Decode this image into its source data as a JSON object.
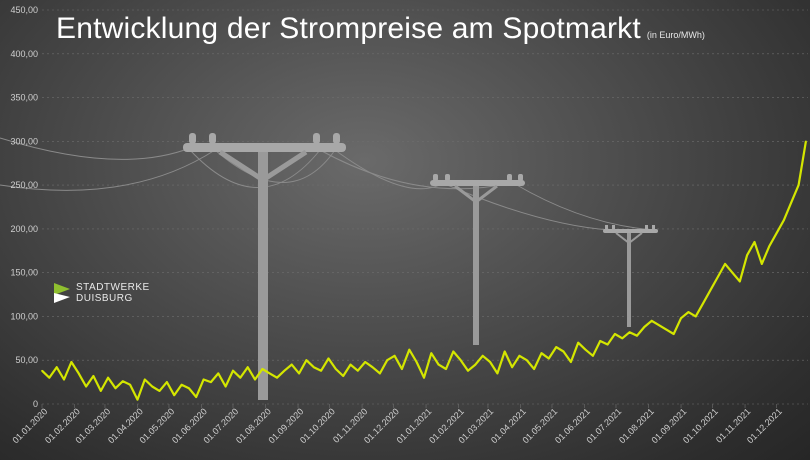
{
  "title": "Entwicklung der Strompreise am Spotmarkt",
  "subtitle": "(in Euro/MWh)",
  "logo": {
    "line1": "STADTWERKE",
    "line2": "DUISBURG"
  },
  "colors": {
    "series": "#d4e600",
    "grid": "#6e6e6e",
    "pole": "#9a9a9a"
  },
  "chart_data": {
    "type": "line",
    "title": "Entwicklung der Strompreise am Spotmarkt",
    "ylabel": "",
    "xlabel": "",
    "ylim": [
      0,
      450
    ],
    "yticks": [
      "0",
      "50,00",
      "100,00",
      "150,00",
      "200,00",
      "250,00",
      "300,00",
      "350,00",
      "400,00",
      "450,00"
    ],
    "yticks_values": [
      0,
      50,
      100,
      150,
      200,
      250,
      300,
      350,
      400,
      450
    ],
    "xlim": [
      "2020-01-01",
      "2021-12-31"
    ],
    "xticks": [
      "01.01.2020",
      "01.02.2020",
      "01.03.2020",
      "01.04.2020",
      "01.05.2020",
      "01.06.2020",
      "01.07.2020",
      "01.08.2020",
      "01.09.2020",
      "01.10.2020",
      "01.11.2020",
      "01.12.2020",
      "01.01.2021",
      "01.02.2021",
      "01.03.2021",
      "01.04.2021",
      "01.05.2021",
      "01.06.2021",
      "01.07.2021",
      "01.08.2021",
      "01.09.2021",
      "01.10.2021",
      "01.11.2021",
      "01.12.2021"
    ],
    "grid": true,
    "series": [
      {
        "x": [
          "2020-01-01",
          "2020-01-08",
          "2020-01-15",
          "2020-01-22",
          "2020-01-29",
          "2020-02-05",
          "2020-02-12",
          "2020-02-19",
          "2020-02-26",
          "2020-03-04",
          "2020-03-11",
          "2020-03-18",
          "2020-03-25",
          "2020-04-01",
          "2020-04-08",
          "2020-04-15",
          "2020-04-22",
          "2020-04-29",
          "2020-05-06",
          "2020-05-13",
          "2020-05-20",
          "2020-05-27",
          "2020-06-03",
          "2020-06-10",
          "2020-06-17",
          "2020-06-24",
          "2020-07-01",
          "2020-07-08",
          "2020-07-15",
          "2020-07-22",
          "2020-07-29",
          "2020-08-05",
          "2020-08-12",
          "2020-08-19",
          "2020-08-26",
          "2020-09-02",
          "2020-09-09",
          "2020-09-16",
          "2020-09-23",
          "2020-09-30",
          "2020-10-07",
          "2020-10-14",
          "2020-10-21",
          "2020-10-28",
          "2020-11-04",
          "2020-11-11",
          "2020-11-18",
          "2020-11-25",
          "2020-12-02",
          "2020-12-09",
          "2020-12-16",
          "2020-12-23",
          "2020-12-30",
          "2021-01-06",
          "2021-01-13",
          "2021-01-20",
          "2021-01-27",
          "2021-02-03",
          "2021-02-10",
          "2021-02-17",
          "2021-02-24",
          "2021-03-03",
          "2021-03-10",
          "2021-03-17",
          "2021-03-24",
          "2021-03-31",
          "2021-04-07",
          "2021-04-14",
          "2021-04-21",
          "2021-04-28",
          "2021-05-05",
          "2021-05-12",
          "2021-05-19",
          "2021-05-26",
          "2021-06-02",
          "2021-06-09",
          "2021-06-16",
          "2021-06-23",
          "2021-06-30",
          "2021-07-07",
          "2021-07-14",
          "2021-07-21",
          "2021-07-28",
          "2021-08-04",
          "2021-08-11",
          "2021-08-18",
          "2021-08-25",
          "2021-09-01",
          "2021-09-08",
          "2021-09-15",
          "2021-09-22",
          "2021-09-29",
          "2021-10-06",
          "2021-10-13",
          "2021-10-20",
          "2021-10-27",
          "2021-11-03",
          "2021-11-10",
          "2021-11-17",
          "2021-11-24",
          "2021-12-01",
          "2021-12-08",
          "2021-12-15",
          "2021-12-22",
          "2021-12-29"
        ],
        "values": [
          38,
          30,
          42,
          28,
          48,
          35,
          20,
          32,
          15,
          30,
          18,
          26,
          22,
          5,
          28,
          20,
          15,
          25,
          10,
          22,
          18,
          8,
          28,
          25,
          35,
          20,
          38,
          30,
          42,
          28,
          40,
          35,
          30,
          38,
          45,
          35,
          50,
          42,
          38,
          52,
          40,
          32,
          45,
          38,
          48,
          42,
          35,
          50,
          55,
          40,
          62,
          48,
          30,
          58,
          45,
          40,
          60,
          50,
          38,
          45,
          55,
          48,
          35,
          60,
          42,
          55,
          50,
          40,
          58,
          52,
          65,
          60,
          48,
          70,
          62,
          55,
          72,
          68,
          80,
          75,
          82,
          78,
          88,
          95,
          90,
          85,
          80,
          98,
          105,
          100,
          115,
          130,
          145,
          160,
          150,
          140,
          170,
          185,
          160,
          180,
          195,
          210,
          230,
          250,
          300
        ]
      }
    ]
  }
}
